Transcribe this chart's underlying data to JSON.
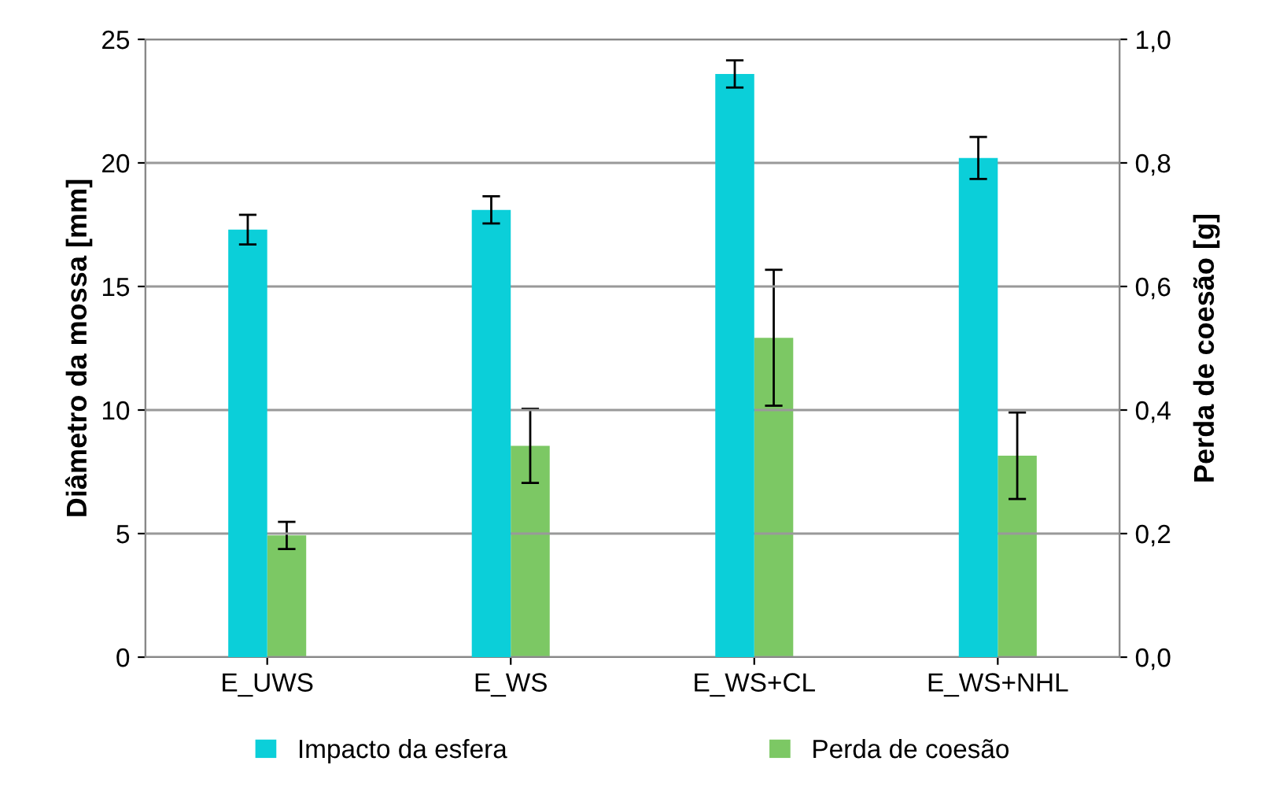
{
  "chart_data": {
    "type": "bar",
    "categories": [
      "E_UWS",
      "E_WS",
      "E_WS+CL",
      "E_WS+NHL"
    ],
    "ylabel": "Diâmetro da mossa [mm]",
    "y2label": "Perda de coesão [g]",
    "series": [
      {
        "name": "Impacto da esfera",
        "color": "#0bcfd9",
        "values": [
          17.3,
          18.1,
          23.6,
          20.2
        ],
        "errors": [
          0.6,
          0.55,
          0.55,
          0.85
        ]
      },
      {
        "name": "Perda de coesão",
        "color": "#7cc864",
        "axis": "y2",
        "values": [
          0.197,
          0.342,
          0.517,
          0.326
        ],
        "errors": [
          0.022,
          0.06,
          0.11,
          0.07
        ]
      }
    ],
    "ylim": [
      0,
      25
    ],
    "yticks": [
      0,
      5,
      10,
      15,
      20,
      25
    ],
    "y2lim": [
      0,
      1
    ],
    "y2ticks": [
      {
        "value": 0,
        "label": "0,0"
      },
      {
        "value": 0.2,
        "label": "0,2"
      },
      {
        "value": 0.4,
        "label": "0,4"
      },
      {
        "value": 0.6,
        "label": "0,6"
      },
      {
        "value": 0.8,
        "label": "0,8"
      },
      {
        "value": 1,
        "label": "1,0"
      }
    ],
    "grid": "y",
    "legend": "bottom"
  }
}
